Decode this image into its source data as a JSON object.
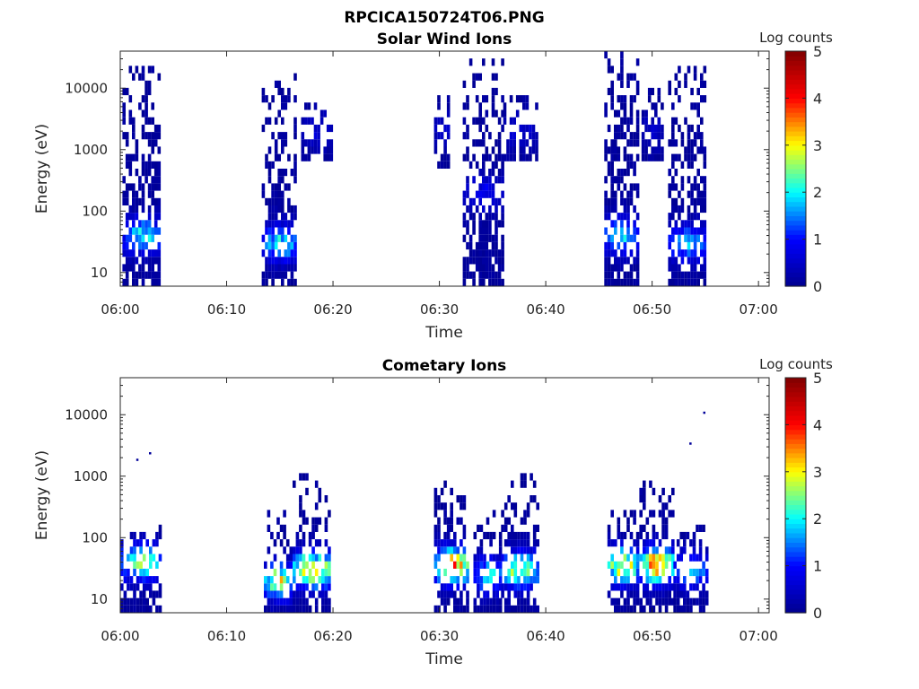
{
  "figure_title": "RPCICA150724T06.PNG",
  "colormap": [
    "#00008f",
    "#0000ff",
    "#00ffff",
    "#ffff00",
    "#ff0000",
    "#800000"
  ],
  "chart_data": [
    {
      "type": "heatmap",
      "title": "Solar Wind Ions",
      "xlabel": "Time",
      "ylabel": "Energy (eV)",
      "y_scale": "log",
      "ylim": [
        6,
        40000
      ],
      "xlim": [
        "06:00",
        "07:01"
      ],
      "xticks": [
        "06:00",
        "06:10",
        "06:20",
        "06:30",
        "06:40",
        "06:50",
        "07:00"
      ],
      "yticks": [
        "10",
        "100",
        "1000",
        "10000"
      ],
      "colorbar": {
        "label": "Log counts",
        "range": [
          0,
          5
        ],
        "ticks": [
          "0",
          "1",
          "2",
          "3",
          "4",
          "5"
        ]
      },
      "bursts": [
        {
          "t_start_min": 0.2,
          "t_end_min": 3.7,
          "e_min": 6,
          "e_max": 25000,
          "peak_log_counts": 2.2,
          "peak_energy": 40
        },
        {
          "t_start_min": 13.3,
          "t_end_min": 16.5,
          "e_min": 6,
          "e_max": 20000,
          "peak_log_counts": 2.3,
          "peak_energy": 30
        },
        {
          "t_start_min": 17.0,
          "t_end_min": 19.8,
          "e_min": 600,
          "e_max": 6000,
          "peak_log_counts": 0.6,
          "peak_energy": 2000
        },
        {
          "t_start_min": 29.5,
          "t_end_min": 31.0,
          "e_min": 500,
          "e_max": 8000,
          "peak_log_counts": 0.6,
          "peak_energy": 2000
        },
        {
          "t_start_min": 32.2,
          "t_end_min": 35.8,
          "e_min": 6,
          "e_max": 30000,
          "peak_log_counts": 0.9,
          "peak_energy": 200
        },
        {
          "t_start_min": 36.0,
          "t_end_min": 39.0,
          "e_min": 700,
          "e_max": 8000,
          "peak_log_counts": 0.6,
          "peak_energy": 2000
        },
        {
          "t_start_min": 45.5,
          "t_end_min": 48.5,
          "e_min": 6,
          "e_max": 35000,
          "peak_log_counts": 2.2,
          "peak_energy": 40
        },
        {
          "t_start_min": 49.0,
          "t_end_min": 50.8,
          "e_min": 700,
          "e_max": 10000,
          "peak_log_counts": 0.5,
          "peak_energy": 2000
        },
        {
          "t_start_min": 51.5,
          "t_end_min": 54.9,
          "e_min": 6,
          "e_max": 25000,
          "peak_log_counts": 2.0,
          "peak_energy": 30
        }
      ]
    },
    {
      "type": "heatmap",
      "title": "Cometary Ions",
      "xlabel": "Time",
      "ylabel": "Energy (eV)",
      "y_scale": "log",
      "ylim": [
        6,
        40000
      ],
      "xlim": [
        "06:00",
        "07:01"
      ],
      "xticks": [
        "06:00",
        "06:10",
        "06:20",
        "06:30",
        "06:40",
        "06:50",
        "07:00"
      ],
      "yticks": [
        "10",
        "100",
        "1000",
        "10000"
      ],
      "colorbar": {
        "label": "Log counts",
        "range": [
          0,
          5
        ],
        "ticks": [
          "0",
          "1",
          "2",
          "3",
          "4",
          "5"
        ]
      },
      "bursts": [
        {
          "t_start_min": 0.0,
          "t_end_min": 3.8,
          "e_min": 6,
          "e_max": 150,
          "peak_log_counts": 3.0,
          "peak_energy": 40
        },
        {
          "t_start_min": 13.5,
          "t_end_min": 16.0,
          "e_min": 6,
          "e_max": 250,
          "peak_log_counts": 3.3,
          "peak_energy": 20
        },
        {
          "t_start_min": 16.2,
          "t_end_min": 19.8,
          "e_min": 6,
          "e_max": 1200,
          "peak_log_counts": 3.8,
          "peak_energy": 30
        },
        {
          "t_start_min": 29.5,
          "t_end_min": 32.8,
          "e_min": 6,
          "e_max": 900,
          "peak_log_counts": 4.0,
          "peak_energy": 35
        },
        {
          "t_start_min": 33.2,
          "t_end_min": 35.8,
          "e_min": 6,
          "e_max": 250,
          "peak_log_counts": 2.2,
          "peak_energy": 25
        },
        {
          "t_start_min": 35.8,
          "t_end_min": 39.2,
          "e_min": 6,
          "e_max": 1200,
          "peak_log_counts": 3.2,
          "peak_energy": 30
        },
        {
          "t_start_min": 45.8,
          "t_end_min": 48.5,
          "e_min": 6,
          "e_max": 300,
          "peak_log_counts": 3.6,
          "peak_energy": 35
        },
        {
          "t_start_min": 48.8,
          "t_end_min": 51.8,
          "e_min": 6,
          "e_max": 900,
          "peak_log_counts": 4.2,
          "peak_energy": 35
        },
        {
          "t_start_min": 52.0,
          "t_end_min": 55.0,
          "e_min": 6,
          "e_max": 150,
          "peak_log_counts": 2.0,
          "peak_energy": 30
        }
      ],
      "isolated_points": [
        {
          "t_min": 1.5,
          "energy": 1800
        },
        {
          "t_min": 2.7,
          "energy": 2300
        },
        {
          "t_min": 53.5,
          "energy": 3300
        },
        {
          "t_min": 54.8,
          "energy": 10500
        }
      ]
    }
  ]
}
